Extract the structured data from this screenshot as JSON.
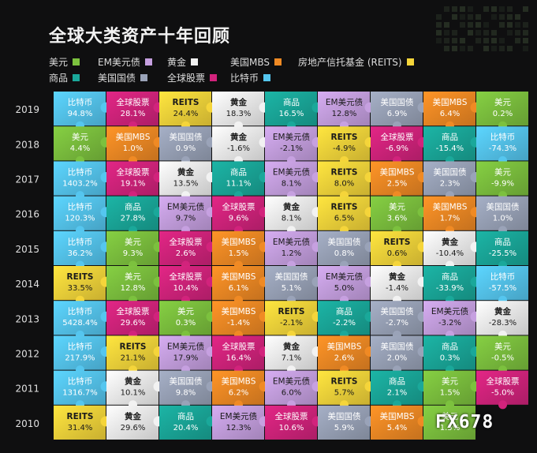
{
  "title": "全球大类资产十年回顾",
  "legend": [
    {
      "label": "美元",
      "color": "#7cc13e"
    },
    {
      "label": "EM美元债",
      "color": "#c6a0e0"
    },
    {
      "label": "黄金",
      "color": "#f2f2f2"
    },
    {
      "label": "美国MBS",
      "color": "#f08a24"
    },
    {
      "label": "房地产信托基金 (REITS)",
      "color": "#f5d53a"
    },
    {
      "label": "商品",
      "color": "#1aa89a"
    },
    {
      "label": "美国国债",
      "color": "#9aa3b8"
    },
    {
      "label": "全球股票",
      "color": "#d2237c"
    },
    {
      "label": "比特币",
      "color": "#55c6ef"
    }
  ],
  "watermark": "FX678",
  "chart_data": {
    "type": "table",
    "title": "全球大类资产十年回顾",
    "columns": 9,
    "asset_colors": {
      "美元": "#7cc13e",
      "EM美元债": "#c6a0e0",
      "黄金": "#f2f2f2",
      "美国MBS": "#f08a24",
      "REITS": "#f5d53a",
      "商品": "#1aa89a",
      "美国国债": "#9aa3b8",
      "全球股票": "#d2237c",
      "比特币": "#55c6ef"
    },
    "rows": [
      {
        "year": "2019",
        "cells": [
          {
            "asset": "比特币",
            "value": "94.8%"
          },
          {
            "asset": "全球股票",
            "value": "28.1%"
          },
          {
            "asset": "REITS",
            "value": "24.4%"
          },
          {
            "asset": "黄金",
            "value": "18.3%"
          },
          {
            "asset": "商品",
            "value": "16.5%"
          },
          {
            "asset": "EM美元债",
            "value": "12.8%"
          },
          {
            "asset": "美国国债",
            "value": "6.9%"
          },
          {
            "asset": "美国MBS",
            "value": "6.4%"
          },
          {
            "asset": "美元",
            "value": "0.2%"
          }
        ]
      },
      {
        "year": "2018",
        "cells": [
          {
            "asset": "美元",
            "value": "4.4%"
          },
          {
            "asset": "美国MBS",
            "value": "1.0%"
          },
          {
            "asset": "美国国债",
            "value": "0.9%"
          },
          {
            "asset": "黄金",
            "value": "-1.6%"
          },
          {
            "asset": "EM美元债",
            "value": "-2.1%"
          },
          {
            "asset": "REITS",
            "value": "-4.9%"
          },
          {
            "asset": "全球股票",
            "value": "-6.9%"
          },
          {
            "asset": "商品",
            "value": "-15.4%"
          },
          {
            "asset": "比特币",
            "value": "-74.3%"
          }
        ]
      },
      {
        "year": "2017",
        "cells": [
          {
            "asset": "比特币",
            "value": "1403.2%"
          },
          {
            "asset": "全球股票",
            "value": "19.1%"
          },
          {
            "asset": "黄金",
            "value": "13.5%"
          },
          {
            "asset": "商品",
            "value": "11.1%"
          },
          {
            "asset": "EM美元债",
            "value": "8.1%"
          },
          {
            "asset": "REITS",
            "value": "8.0%"
          },
          {
            "asset": "美国MBS",
            "value": "2.5%"
          },
          {
            "asset": "美国国债",
            "value": "2.3%"
          },
          {
            "asset": "美元",
            "value": "-9.9%"
          }
        ]
      },
      {
        "year": "2016",
        "cells": [
          {
            "asset": "比特币",
            "value": "120.3%"
          },
          {
            "asset": "商品",
            "value": "27.8%"
          },
          {
            "asset": "EM美元债",
            "value": "9.7%"
          },
          {
            "asset": "全球股票",
            "value": "9.6%"
          },
          {
            "asset": "黄金",
            "value": "8.1%"
          },
          {
            "asset": "REITS",
            "value": "6.5%"
          },
          {
            "asset": "美元",
            "value": "3.6%"
          },
          {
            "asset": "美国MBS",
            "value": "1.7%"
          },
          {
            "asset": "美国国债",
            "value": "1.0%"
          }
        ]
      },
      {
        "year": "2015",
        "cells": [
          {
            "asset": "比特币",
            "value": "36.2%"
          },
          {
            "asset": "美元",
            "value": "9.3%"
          },
          {
            "asset": "全球股票",
            "value": "2.6%"
          },
          {
            "asset": "美国MBS",
            "value": "1.5%"
          },
          {
            "asset": "EM美元债",
            "value": "1.2%"
          },
          {
            "asset": "美国国债",
            "value": "0.8%"
          },
          {
            "asset": "REITS",
            "value": "0.6%"
          },
          {
            "asset": "黄金",
            "value": "-10.4%"
          },
          {
            "asset": "商品",
            "value": "-25.5%"
          }
        ]
      },
      {
        "year": "2014",
        "cells": [
          {
            "asset": "REITS",
            "value": "33.5%"
          },
          {
            "asset": "美元",
            "value": "12.8%"
          },
          {
            "asset": "全球股票",
            "value": "10.4%"
          },
          {
            "asset": "美国MBS",
            "value": "6.1%"
          },
          {
            "asset": "美国国债",
            "value": "5.1%"
          },
          {
            "asset": "EM美元债",
            "value": "5.0%"
          },
          {
            "asset": "黄金",
            "value": "-1.4%"
          },
          {
            "asset": "商品",
            "value": "-33.9%"
          },
          {
            "asset": "比特币",
            "value": "-57.5%"
          }
        ]
      },
      {
        "year": "2013",
        "cells": [
          {
            "asset": "比特币",
            "value": "5428.4%"
          },
          {
            "asset": "全球股票",
            "value": "29.6%"
          },
          {
            "asset": "美元",
            "value": "0.3%"
          },
          {
            "asset": "美国MBS",
            "value": "-1.4%"
          },
          {
            "asset": "REITS",
            "value": "-2.1%"
          },
          {
            "asset": "商品",
            "value": "-2.2%"
          },
          {
            "asset": "美国国债",
            "value": "-2.7%"
          },
          {
            "asset": "EM美元债",
            "value": "-3.2%"
          },
          {
            "asset": "黄金",
            "value": "-28.3%"
          }
        ]
      },
      {
        "year": "2012",
        "cells": [
          {
            "asset": "比特币",
            "value": "217.9%"
          },
          {
            "asset": "REITS",
            "value": "21.1%"
          },
          {
            "asset": "EM美元债",
            "value": "17.9%"
          },
          {
            "asset": "全球股票",
            "value": "16.4%"
          },
          {
            "asset": "黄金",
            "value": "7.1%"
          },
          {
            "asset": "美国MBS",
            "value": "2.6%"
          },
          {
            "asset": "美国国债",
            "value": "2.0%"
          },
          {
            "asset": "商品",
            "value": "0.3%"
          },
          {
            "asset": "美元",
            "value": "-0.5%"
          }
        ]
      },
      {
        "year": "2011",
        "cells": [
          {
            "asset": "比特币",
            "value": "1316.7%"
          },
          {
            "asset": "黄金",
            "value": "10.1%"
          },
          {
            "asset": "美国国债",
            "value": "9.8%"
          },
          {
            "asset": "美国MBS",
            "value": "6.2%"
          },
          {
            "asset": "EM美元债",
            "value": "6.0%"
          },
          {
            "asset": "REITS",
            "value": "5.7%"
          },
          {
            "asset": "商品",
            "value": "2.1%"
          },
          {
            "asset": "美元",
            "value": "1.5%"
          },
          {
            "asset": "全球股票",
            "value": "-5.0%"
          }
        ]
      },
      {
        "year": "2010",
        "cells": [
          {
            "asset": "REITS",
            "value": "31.4%"
          },
          {
            "asset": "黄金",
            "value": "29.6%"
          },
          {
            "asset": "商品",
            "value": "20.4%"
          },
          {
            "asset": "EM美元债",
            "value": "12.3%"
          },
          {
            "asset": "全球股票",
            "value": "10.6%"
          },
          {
            "asset": "美国国债",
            "value": "5.9%"
          },
          {
            "asset": "美国MBS",
            "value": "5.4%"
          },
          {
            "asset": "美元",
            "value": "1.5%"
          }
        ]
      }
    ]
  }
}
